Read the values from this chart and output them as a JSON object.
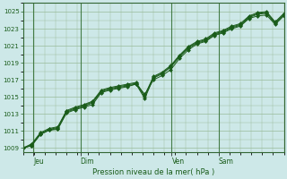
{
  "bg_color": "#cde8e8",
  "grid_color": "#99bb99",
  "line_color": "#1a5c1a",
  "marker_color": "#1a5c1a",
  "xlabel": "Pression niveau de la mer( hPa )",
  "ylim": [
    1008.5,
    1026.0
  ],
  "yticks": [
    1009,
    1011,
    1013,
    1015,
    1017,
    1019,
    1021,
    1023,
    1025
  ],
  "xtick_labels": [
    "Jeu",
    "Dim",
    "Ven",
    "Sam"
  ],
  "xtick_positions": [
    0.04,
    0.22,
    0.57,
    0.75
  ],
  "vline_positions": [
    0.04,
    0.22,
    0.57,
    0.75
  ],
  "series": [
    [
      1009.0,
      1009.3,
      1010.6,
      1011.1,
      1011.2,
      1013.1,
      1013.5,
      1013.8,
      1014.1,
      1015.5,
      1015.8,
      1016.0,
      1016.2,
      1016.5,
      1015.3,
      1017.0,
      1017.5,
      1018.2,
      1019.5,
      1020.5,
      1021.2,
      1021.5,
      1022.2,
      1022.5,
      1023.0,
      1023.3,
      1024.2,
      1024.5,
      1024.6,
      1023.5,
      1024.5
    ],
    [
      1009.0,
      1009.3,
      1010.6,
      1011.1,
      1011.3,
      1013.2,
      1013.6,
      1013.9,
      1014.3,
      1015.6,
      1015.9,
      1016.1,
      1016.3,
      1016.5,
      1014.8,
      1017.2,
      1017.7,
      1018.5,
      1019.7,
      1020.7,
      1021.3,
      1021.6,
      1022.3,
      1022.6,
      1023.1,
      1023.4,
      1024.3,
      1024.7,
      1024.8,
      1023.6,
      1024.6
    ],
    [
      1009.0,
      1009.4,
      1010.7,
      1011.2,
      1011.4,
      1013.3,
      1013.7,
      1014.0,
      1014.4,
      1015.7,
      1016.0,
      1016.2,
      1016.4,
      1016.6,
      1015.0,
      1017.3,
      1017.8,
      1018.6,
      1019.8,
      1020.8,
      1021.4,
      1021.7,
      1022.4,
      1022.7,
      1023.2,
      1023.5,
      1024.4,
      1024.8,
      1024.9,
      1023.7,
      1024.7
    ],
    [
      1009.0,
      1009.5,
      1010.8,
      1011.3,
      1011.5,
      1013.4,
      1013.8,
      1014.1,
      1014.5,
      1015.8,
      1016.1,
      1016.3,
      1016.5,
      1016.7,
      1015.2,
      1017.4,
      1017.9,
      1018.7,
      1019.9,
      1020.9,
      1021.5,
      1021.8,
      1022.5,
      1022.8,
      1023.3,
      1023.6,
      1024.5,
      1024.9,
      1025.0,
      1023.8,
      1024.8
    ]
  ],
  "n_points": 31,
  "spine_color": "#336633",
  "tick_labelsize": 5.0,
  "xlabel_fontsize": 6.0
}
